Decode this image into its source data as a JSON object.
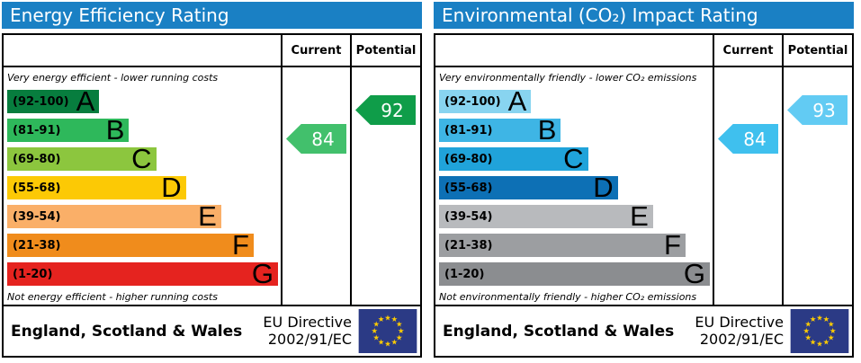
{
  "colors": {
    "header_bg": "#1a80c4",
    "eu_flag_bg": "#2b3a85",
    "eu_star": "#ffcc00"
  },
  "panels": [
    {
      "title": "Energy Efficiency Rating",
      "header": {
        "current": "Current",
        "potential": "Potential"
      },
      "top_note": "Very energy efficient - lower running costs",
      "bottom_note": "Not energy efficient - higher running costs",
      "bands": [
        {
          "range": "(92-100)",
          "letter": "A",
          "color": "#077d3e",
          "width_pct": 34
        },
        {
          "range": "(81-91)",
          "letter": "B",
          "color": "#2eb85b",
          "width_pct": 45
        },
        {
          "range": "(69-80)",
          "letter": "C",
          "color": "#8cc63e",
          "width_pct": 55
        },
        {
          "range": "(55-68)",
          "letter": "D",
          "color": "#fcc905",
          "width_pct": 66
        },
        {
          "range": "(39-54)",
          "letter": "E",
          "color": "#faaf68",
          "width_pct": 79
        },
        {
          "range": "(21-38)",
          "letter": "F",
          "color": "#f08c1c",
          "width_pct": 91
        },
        {
          "range": "(1-20)",
          "letter": "G",
          "color": "#e5231f",
          "width_pct": 100
        }
      ],
      "current": {
        "label": "84",
        "band_index": 1,
        "color": "#42c06c"
      },
      "potential": {
        "label": "92",
        "band_index": 0,
        "color": "#0f9d49"
      },
      "footer": {
        "region": "England, Scotland & Wales",
        "directive_line1": "EU Directive",
        "directive_line2": "2002/91/EC"
      }
    },
    {
      "title": "Environmental (CO₂) Impact Rating",
      "header": {
        "current": "Current",
        "potential": "Potential"
      },
      "top_note": "Very environmentally friendly - lower CO₂ emissions",
      "bottom_note": "Not environmentally friendly - higher CO₂ emissions",
      "bands": [
        {
          "range": "(92-100)",
          "letter": "A",
          "color": "#88d4f0",
          "width_pct": 34
        },
        {
          "range": "(81-91)",
          "letter": "B",
          "color": "#3eb5e5",
          "width_pct": 45
        },
        {
          "range": "(69-80)",
          "letter": "C",
          "color": "#20a3da",
          "width_pct": 55
        },
        {
          "range": "(55-68)",
          "letter": "D",
          "color": "#0d70b5",
          "width_pct": 66
        },
        {
          "range": "(39-54)",
          "letter": "E",
          "color": "#b8babd",
          "width_pct": 79
        },
        {
          "range": "(21-38)",
          "letter": "F",
          "color": "#9c9ea1",
          "width_pct": 91
        },
        {
          "range": "(1-20)",
          "letter": "G",
          "color": "#8b8d90",
          "width_pct": 100
        }
      ],
      "current": {
        "label": "84",
        "band_index": 1,
        "color": "#3fc0ee"
      },
      "potential": {
        "label": "93",
        "band_index": 0,
        "color": "#62cbf3"
      },
      "footer": {
        "region": "England, Scotland & Wales",
        "directive_line1": "EU Directive",
        "directive_line2": "2002/91/EC"
      }
    }
  ],
  "chart_data": [
    {
      "type": "bar",
      "title": "Energy Efficiency Rating",
      "categories": [
        "A (92-100)",
        "B (81-91)",
        "C (69-80)",
        "D (55-68)",
        "E (39-54)",
        "F (21-38)",
        "G (1-20)"
      ],
      "values": [
        34,
        45,
        55,
        66,
        79,
        91,
        100
      ],
      "value_note": "relative band bar lengths in % of column width",
      "current_rating": 84,
      "current_band": "B",
      "potential_rating": 92,
      "potential_band": "A",
      "scale_range": [
        1,
        100
      ],
      "top_label": "Very energy efficient - lower running costs",
      "bottom_label": "Not energy efficient - higher running costs",
      "footer": "England, Scotland & Wales — EU Directive 2002/91/EC"
    },
    {
      "type": "bar",
      "title": "Environmental (CO₂) Impact Rating",
      "categories": [
        "A (92-100)",
        "B (81-91)",
        "C (69-80)",
        "D (55-68)",
        "E (39-54)",
        "F (21-38)",
        "G (1-20)"
      ],
      "values": [
        34,
        45,
        55,
        66,
        79,
        91,
        100
      ],
      "value_note": "relative band bar lengths in % of column width",
      "current_rating": 84,
      "current_band": "B",
      "potential_rating": 93,
      "potential_band": "A",
      "scale_range": [
        1,
        100
      ],
      "top_label": "Very environmentally friendly - lower CO₂ emissions",
      "bottom_label": "Not environmentally friendly - higher CO₂ emissions",
      "footer": "England, Scotland & Wales — EU Directive 2002/91/EC"
    }
  ]
}
